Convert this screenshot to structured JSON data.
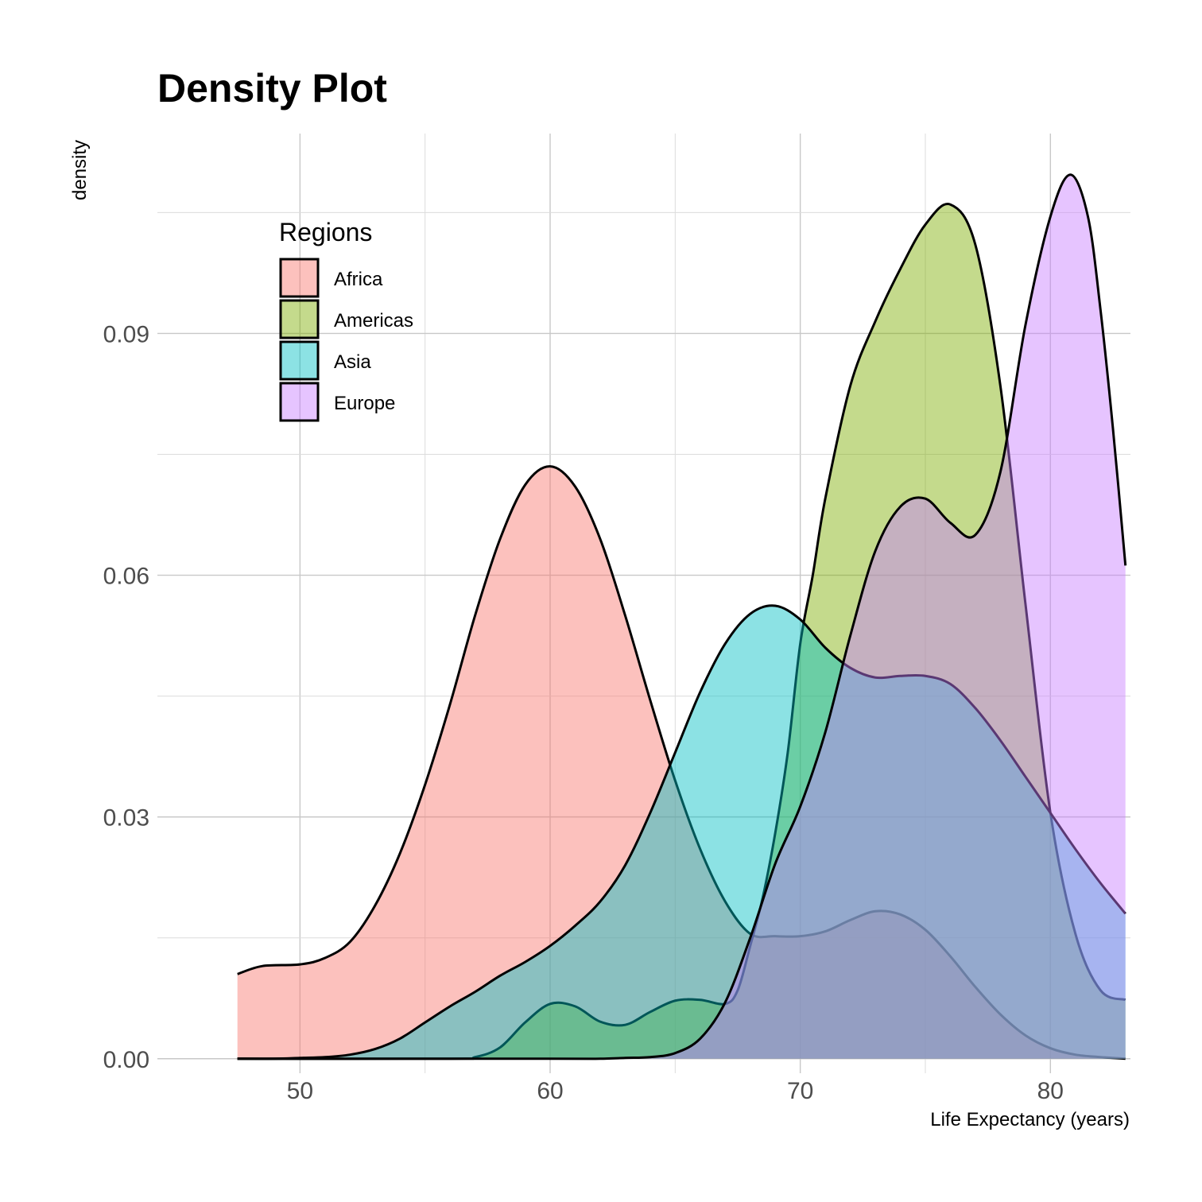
{
  "chart_data": {
    "type": "area",
    "title": "Density Plot",
    "xlabel": "Life Expectancy (years)",
    "ylabel": "density",
    "xlim": [
      44.3,
      83.2
    ],
    "ylim": [
      -0.0018,
      0.1148
    ],
    "x_ticks": [
      50,
      60,
      70,
      80
    ],
    "x_tick_labels": [
      "50",
      "60",
      "70",
      "80"
    ],
    "y_ticks": [
      0.0,
      0.03,
      0.06,
      0.09
    ],
    "y_tick_labels": [
      "0.00",
      "0.03",
      "0.06",
      "0.09"
    ],
    "grid": true,
    "legend": {
      "title": "Regions",
      "position": "top-left"
    },
    "series": [
      {
        "name": "Africa",
        "color": "#F8766D",
        "points": [
          [
            47.5,
            0.0105
          ],
          [
            48.5,
            0.0115
          ],
          [
            50,
            0.0117
          ],
          [
            51,
            0.0125
          ],
          [
            52,
            0.0145
          ],
          [
            53,
            0.019
          ],
          [
            54,
            0.0255
          ],
          [
            55,
            0.034
          ],
          [
            56,
            0.044
          ],
          [
            57,
            0.055
          ],
          [
            58,
            0.0645
          ],
          [
            59,
            0.0712
          ],
          [
            60,
            0.0735
          ],
          [
            61,
            0.071
          ],
          [
            62,
            0.0645
          ],
          [
            63,
            0.055
          ],
          [
            64,
            0.0445
          ],
          [
            65,
            0.0345
          ],
          [
            66,
            0.026
          ],
          [
            67,
            0.0195
          ],
          [
            68,
            0.0155
          ],
          [
            69,
            0.0152
          ],
          [
            70,
            0.0152
          ],
          [
            71,
            0.0158
          ],
          [
            72,
            0.0172
          ],
          [
            73,
            0.0183
          ],
          [
            74,
            0.0179
          ],
          [
            75,
            0.016
          ],
          [
            76,
            0.0127
          ],
          [
            77,
            0.0089
          ],
          [
            78,
            0.0055
          ],
          [
            79,
            0.0029
          ],
          [
            80,
            0.0013
          ],
          [
            81,
            0.0005
          ],
          [
            82,
            0.0002
          ],
          [
            83,
            0.0
          ]
        ]
      },
      {
        "name": "Americas",
        "color": "#7CAE00",
        "points": [
          [
            47.5,
            0.0
          ],
          [
            56,
            0.0
          ],
          [
            57,
            0.0002
          ],
          [
            58,
            0.0014
          ],
          [
            59,
            0.0045
          ],
          [
            60,
            0.0068
          ],
          [
            61,
            0.0065
          ],
          [
            62,
            0.0046
          ],
          [
            63,
            0.0042
          ],
          [
            64,
            0.0058
          ],
          [
            65,
            0.0072
          ],
          [
            66,
            0.0073
          ],
          [
            67,
            0.0068
          ],
          [
            67.5,
            0.0085
          ],
          [
            68,
            0.014
          ],
          [
            68.5,
            0.02
          ],
          [
            69,
            0.028
          ],
          [
            69.5,
            0.038
          ],
          [
            70,
            0.0515
          ],
          [
            70.5,
            0.06
          ],
          [
            71,
            0.0695
          ],
          [
            72,
            0.0835
          ],
          [
            73,
            0.0915
          ],
          [
            74,
            0.098
          ],
          [
            75,
            0.1035
          ],
          [
            76,
            0.106
          ],
          [
            77,
            0.101
          ],
          [
            78,
            0.0835
          ],
          [
            79,
            0.0565
          ],
          [
            80,
            0.0305
          ],
          [
            81,
            0.0155
          ],
          [
            82,
            0.0085
          ],
          [
            83,
            0.0073
          ]
        ]
      },
      {
        "name": "Asia",
        "color": "#00BFC4",
        "points": [
          [
            47.5,
            0.0
          ],
          [
            49,
            0.0
          ],
          [
            50,
            0.0001
          ],
          [
            51,
            0.0002
          ],
          [
            52,
            0.0005
          ],
          [
            53,
            0.0012
          ],
          [
            54,
            0.0025
          ],
          [
            55,
            0.0045
          ],
          [
            56,
            0.0065
          ],
          [
            57,
            0.0083
          ],
          [
            58,
            0.0103
          ],
          [
            59,
            0.012
          ],
          [
            60,
            0.014
          ],
          [
            61,
            0.0165
          ],
          [
            62,
            0.0195
          ],
          [
            63,
            0.024
          ],
          [
            64,
            0.0305
          ],
          [
            65,
            0.038
          ],
          [
            66,
            0.0455
          ],
          [
            67,
            0.0515
          ],
          [
            68,
            0.0552
          ],
          [
            69,
            0.0562
          ],
          [
            70,
            0.0545
          ],
          [
            71,
            0.051
          ],
          [
            72,
            0.0485
          ],
          [
            73,
            0.0473
          ],
          [
            74,
            0.0475
          ],
          [
            75,
            0.0475
          ],
          [
            76,
            0.0465
          ],
          [
            77,
            0.0435
          ],
          [
            78,
            0.0395
          ],
          [
            79,
            0.035
          ],
          [
            80,
            0.0305
          ],
          [
            81,
            0.026
          ],
          [
            82,
            0.0218
          ],
          [
            83,
            0.018
          ]
        ]
      },
      {
        "name": "Europe",
        "color": "#C77CFF",
        "points": [
          [
            47.5,
            0.0
          ],
          [
            60,
            0.0
          ],
          [
            62,
            0.0
          ],
          [
            63,
            0.0001
          ],
          [
            64,
            0.0002
          ],
          [
            65,
            0.0007
          ],
          [
            66,
            0.0025
          ],
          [
            67,
            0.007
          ],
          [
            68,
            0.015
          ],
          [
            69,
            0.0242
          ],
          [
            70,
            0.0313
          ],
          [
            71,
            0.0405
          ],
          [
            72,
            0.0525
          ],
          [
            73,
            0.063
          ],
          [
            74,
            0.0685
          ],
          [
            75,
            0.0695
          ],
          [
            76,
            0.0665
          ],
          [
            77,
            0.065
          ],
          [
            78,
            0.0728
          ],
          [
            79,
            0.091
          ],
          [
            80,
            0.1045
          ],
          [
            80.8,
            0.1097
          ],
          [
            81.5,
            0.1045
          ],
          [
            82,
            0.093
          ],
          [
            82.5,
            0.0782
          ],
          [
            83,
            0.0612
          ]
        ]
      }
    ]
  }
}
